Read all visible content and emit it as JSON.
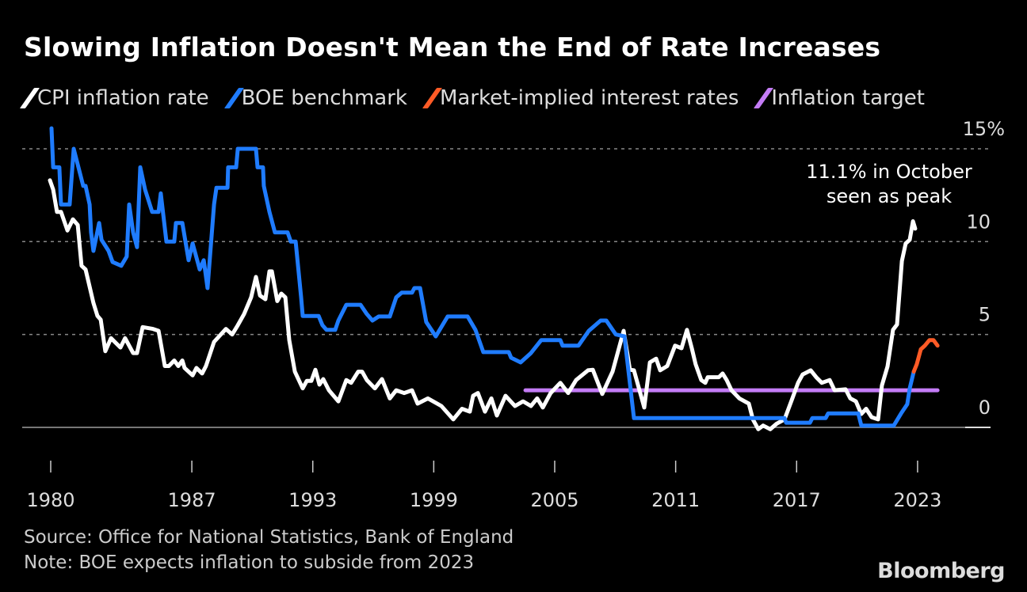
{
  "chart_data": {
    "type": "line",
    "title": "Slowing Inflation Doesn't Mean the End of Rate Increases",
    "xlabel": "",
    "ylabel": "",
    "xlim": [
      1980,
      2024.5
    ],
    "ylim": [
      -1.5,
      16
    ],
    "grid": true,
    "legend_placement": "top",
    "y_ticks": [
      {
        "value": 0,
        "label": "0"
      },
      {
        "value": 5,
        "label": "5"
      },
      {
        "value": 10,
        "label": "10"
      },
      {
        "value": 15,
        "label": "15%"
      }
    ],
    "x_ticks": [
      {
        "value": 1980,
        "label": "1980"
      },
      {
        "value": 1987,
        "label": "1987"
      },
      {
        "value": 1993,
        "label": "1993"
      },
      {
        "value": 1999,
        "label": "1999"
      },
      {
        "value": 2005,
        "label": "2005"
      },
      {
        "value": 2011,
        "label": "2011"
      },
      {
        "value": 2017,
        "label": "2017"
      },
      {
        "value": 2023,
        "label": "2023"
      }
    ],
    "annotation": {
      "line1": "11.1% in October",
      "line2": "seen as peak",
      "x": 2022.77,
      "y": 11.1
    },
    "series": [
      {
        "name": "CPI inflation rate",
        "color": "#ffffff",
        "points": [
          [
            1979.96,
            13.3
          ],
          [
            1980.12,
            12.8
          ],
          [
            1980.31,
            11.6
          ],
          [
            1980.51,
            11.6
          ],
          [
            1980.83,
            10.6
          ],
          [
            1981.1,
            11.2
          ],
          [
            1981.34,
            10.9
          ],
          [
            1981.53,
            8.7
          ],
          [
            1981.73,
            8.5
          ],
          [
            1982.12,
            6.7
          ],
          [
            1982.32,
            6.0
          ],
          [
            1982.48,
            5.8
          ],
          [
            1982.71,
            4.1
          ],
          [
            1982.99,
            4.8
          ],
          [
            1983.46,
            4.3
          ],
          [
            1983.69,
            4.8
          ],
          [
            1984.09,
            4.0
          ],
          [
            1984.28,
            4.0
          ],
          [
            1984.56,
            5.4
          ],
          [
            1985.07,
            5.3
          ],
          [
            1985.35,
            5.2
          ],
          [
            1985.66,
            3.3
          ],
          [
            1985.86,
            3.3
          ],
          [
            1986.13,
            3.6
          ],
          [
            1986.33,
            3.3
          ],
          [
            1986.53,
            3.6
          ],
          [
            1986.64,
            3.2
          ],
          [
            1987.04,
            2.8
          ],
          [
            1987.23,
            3.2
          ],
          [
            1987.51,
            2.9
          ],
          [
            1987.7,
            3.3
          ],
          [
            1988.1,
            4.6
          ],
          [
            1988.69,
            5.3
          ],
          [
            1989.0,
            5.0
          ],
          [
            1989.28,
            5.5
          ],
          [
            1989.59,
            6.1
          ],
          [
            1989.94,
            7.0
          ],
          [
            1990.18,
            8.1
          ],
          [
            1990.38,
            7.1
          ],
          [
            1990.65,
            6.9
          ],
          [
            1990.85,
            8.4
          ],
          [
            1990.97,
            8.4
          ],
          [
            1991.24,
            6.8
          ],
          [
            1991.44,
            7.2
          ],
          [
            1991.64,
            7.0
          ],
          [
            1991.83,
            4.7
          ],
          [
            1992.11,
            3.0
          ],
          [
            1992.5,
            2.1
          ],
          [
            1992.7,
            2.5
          ],
          [
            1992.93,
            2.5
          ],
          [
            1993.13,
            3.1
          ],
          [
            1993.33,
            2.3
          ],
          [
            1993.52,
            2.6
          ],
          [
            1993.8,
            2.0
          ],
          [
            1994.27,
            1.4
          ],
          [
            1994.66,
            2.55
          ],
          [
            1994.9,
            2.4
          ],
          [
            1995.25,
            3.0
          ],
          [
            1995.45,
            3.0
          ],
          [
            1995.68,
            2.55
          ],
          [
            1996.08,
            2.1
          ],
          [
            1996.43,
            2.6
          ],
          [
            1996.82,
            1.56
          ],
          [
            1997.14,
            2.0
          ],
          [
            1997.53,
            1.85
          ],
          [
            1997.92,
            2.0
          ],
          [
            1998.2,
            1.28
          ],
          [
            1998.71,
            1.56
          ],
          [
            1999.38,
            1.15
          ],
          [
            1999.97,
            0.43
          ],
          [
            2000.4,
            1.0
          ],
          [
            2000.79,
            0.85
          ],
          [
            2000.95,
            1.7
          ],
          [
            2001.19,
            1.85
          ],
          [
            2001.54,
            0.85
          ],
          [
            2001.86,
            1.56
          ],
          [
            2002.13,
            0.64
          ],
          [
            2002.56,
            1.7
          ],
          [
            2003.03,
            1.15
          ],
          [
            2003.43,
            1.4
          ],
          [
            2003.82,
            1.15
          ],
          [
            2004.13,
            1.56
          ],
          [
            2004.41,
            1.07
          ],
          [
            2004.8,
            1.85
          ],
          [
            2005.28,
            2.4
          ],
          [
            2005.67,
            1.85
          ],
          [
            2006.06,
            2.55
          ],
          [
            2006.65,
            3.07
          ],
          [
            2006.89,
            3.1
          ],
          [
            2007.36,
            1.8
          ],
          [
            2007.87,
            3.0
          ],
          [
            2008.42,
            5.2
          ],
          [
            2008.73,
            3.1
          ],
          [
            2008.93,
            3.07
          ],
          [
            2009.44,
            1.07
          ],
          [
            2009.72,
            3.5
          ],
          [
            2010.03,
            3.7
          ],
          [
            2010.23,
            3.07
          ],
          [
            2010.58,
            3.3
          ],
          [
            2010.97,
            4.4
          ],
          [
            2011.29,
            4.26
          ],
          [
            2011.56,
            5.25
          ],
          [
            2011.8,
            4.26
          ],
          [
            2011.99,
            3.4
          ],
          [
            2012.27,
            2.55
          ],
          [
            2012.47,
            2.4
          ],
          [
            2012.59,
            2.7
          ],
          [
            2013.14,
            2.7
          ],
          [
            2013.33,
            2.9
          ],
          [
            2013.53,
            2.55
          ],
          [
            2013.77,
            2.0
          ],
          [
            2014.16,
            1.56
          ],
          [
            2014.63,
            1.28
          ],
          [
            2014.83,
            0.43
          ],
          [
            2015.1,
            -0.1
          ],
          [
            2015.34,
            0.1
          ],
          [
            2015.69,
            -0.1
          ],
          [
            2016.01,
            0.2
          ],
          [
            2016.4,
            0.43
          ],
          [
            2016.79,
            1.56
          ],
          [
            2017.07,
            2.4
          ],
          [
            2017.3,
            2.85
          ],
          [
            2017.7,
            3.07
          ],
          [
            2017.97,
            2.7
          ],
          [
            2018.25,
            2.4
          ],
          [
            2018.64,
            2.55
          ],
          [
            2018.88,
            2.0
          ],
          [
            2019.43,
            2.05
          ],
          [
            2019.66,
            1.56
          ],
          [
            2019.94,
            1.4
          ],
          [
            2020.21,
            0.72
          ],
          [
            2020.45,
            1.0
          ],
          [
            2020.72,
            0.55
          ],
          [
            2021.04,
            0.43
          ],
          [
            2021.23,
            2.26
          ],
          [
            2021.51,
            3.28
          ],
          [
            2021.78,
            5.25
          ],
          [
            2021.98,
            5.54
          ],
          [
            2022.22,
            8.95
          ],
          [
            2022.41,
            9.9
          ],
          [
            2022.61,
            10.1
          ],
          [
            2022.77,
            11.1
          ],
          [
            2022.88,
            10.7
          ]
        ]
      },
      {
        "name": "BOE benchmark",
        "color": "#1f7cff",
        "points": [
          [
            1980.04,
            16.1
          ],
          [
            1980.12,
            14.0
          ],
          [
            1980.43,
            14.0
          ],
          [
            1980.51,
            12.0
          ],
          [
            1980.94,
            12.0
          ],
          [
            1981.14,
            15.0
          ],
          [
            1981.61,
            13.0
          ],
          [
            1981.73,
            13.0
          ],
          [
            1981.93,
            12.0
          ],
          [
            1982.0,
            10.5
          ],
          [
            1982.12,
            9.5
          ],
          [
            1982.4,
            11.0
          ],
          [
            1982.52,
            10.1
          ],
          [
            1982.87,
            9.5
          ],
          [
            1983.07,
            8.9
          ],
          [
            1983.5,
            8.7
          ],
          [
            1983.77,
            9.2
          ],
          [
            1983.89,
            12.0
          ],
          [
            1984.09,
            10.5
          ],
          [
            1984.28,
            9.7
          ],
          [
            1984.44,
            14.0
          ],
          [
            1984.68,
            12.8
          ],
          [
            1985.03,
            11.6
          ],
          [
            1985.35,
            11.6
          ],
          [
            1985.46,
            12.6
          ],
          [
            1985.74,
            10.0
          ],
          [
            1986.13,
            10.0
          ],
          [
            1986.21,
            11.0
          ],
          [
            1986.53,
            11.0
          ],
          [
            1986.84,
            9.0
          ],
          [
            1987.04,
            9.9
          ],
          [
            1987.39,
            8.5
          ],
          [
            1987.59,
            9.0
          ],
          [
            1987.78,
            7.5
          ],
          [
            1988.1,
            12.0
          ],
          [
            1988.22,
            12.9
          ],
          [
            1988.77,
            12.9
          ],
          [
            1988.8,
            14.0
          ],
          [
            1989.2,
            14.0
          ],
          [
            1989.28,
            15.0
          ],
          [
            1990.18,
            15.0
          ],
          [
            1990.26,
            14.0
          ],
          [
            1990.53,
            14.0
          ],
          [
            1990.57,
            13.0
          ],
          [
            1990.85,
            11.6
          ],
          [
            1991.12,
            10.5
          ],
          [
            1991.75,
            10.5
          ],
          [
            1991.91,
            10.0
          ],
          [
            1992.15,
            10.0
          ],
          [
            1992.42,
            7.0
          ],
          [
            1992.5,
            6.0
          ],
          [
            1993.29,
            6.0
          ],
          [
            1993.48,
            5.5
          ],
          [
            1993.68,
            5.25
          ],
          [
            1994.11,
            5.25
          ],
          [
            1994.27,
            5.75
          ],
          [
            1994.66,
            6.6
          ],
          [
            1995.37,
            6.6
          ],
          [
            1995.68,
            6.1
          ],
          [
            1995.96,
            5.75
          ],
          [
            1996.27,
            5.97
          ],
          [
            1996.82,
            5.97
          ],
          [
            1997.14,
            7.0
          ],
          [
            1997.41,
            7.25
          ],
          [
            1997.92,
            7.25
          ],
          [
            1998.04,
            7.5
          ],
          [
            1998.32,
            7.5
          ],
          [
            1998.63,
            5.67
          ],
          [
            1999.1,
            4.9
          ],
          [
            1999.69,
            5.97
          ],
          [
            2000.68,
            5.97
          ],
          [
            2001.07,
            5.25
          ],
          [
            2001.46,
            4.05
          ],
          [
            2002.72,
            4.05
          ],
          [
            2002.84,
            3.75
          ],
          [
            2003.31,
            3.5
          ],
          [
            2003.82,
            4.0
          ],
          [
            2004.33,
            4.7
          ],
          [
            2005.28,
            4.7
          ],
          [
            2005.39,
            4.4
          ],
          [
            2006.18,
            4.4
          ],
          [
            2006.69,
            5.2
          ],
          [
            2007.28,
            5.75
          ],
          [
            2007.56,
            5.75
          ],
          [
            2008.03,
            5.0
          ],
          [
            2008.46,
            4.9
          ],
          [
            2008.93,
            0.5
          ],
          [
            2016.4,
            0.5
          ],
          [
            2016.48,
            0.25
          ],
          [
            2017.66,
            0.25
          ],
          [
            2017.78,
            0.5
          ],
          [
            2018.44,
            0.5
          ],
          [
            2018.56,
            0.75
          ],
          [
            2020.06,
            0.75
          ],
          [
            2020.21,
            0.1
          ],
          [
            2021.82,
            0.1
          ],
          [
            2022.18,
            0.75
          ],
          [
            2022.49,
            1.25
          ],
          [
            2022.61,
            2.1
          ],
          [
            2022.81,
            3.0
          ]
        ]
      },
      {
        "name": "Market-implied interest rates",
        "color": "#ff5b26",
        "points": [
          [
            2022.81,
            3.0
          ],
          [
            2022.96,
            3.4
          ],
          [
            2023.16,
            4.2
          ],
          [
            2023.36,
            4.4
          ],
          [
            2023.59,
            4.7
          ],
          [
            2023.79,
            4.7
          ],
          [
            2023.99,
            4.4
          ]
        ]
      },
      {
        "name": "Inflation target",
        "color": "#c47cf6",
        "points": [
          [
            2003.55,
            2.0
          ],
          [
            2023.99,
            2.0
          ]
        ]
      }
    ]
  },
  "footer": {
    "source": "Source: Office for National Statistics, Bank of England",
    "note": "Note: BOE expects inflation to subside from 2023"
  },
  "logo": "Bloomberg"
}
